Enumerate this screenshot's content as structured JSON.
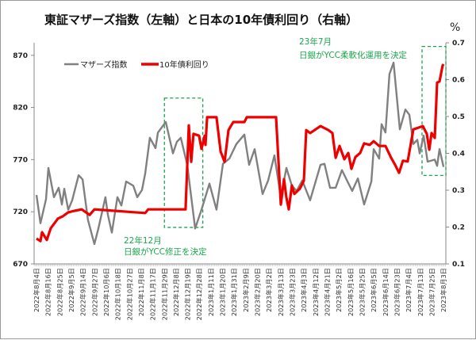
{
  "chart_data": {
    "type": "line",
    "title": "東証マザーズ指数（左軸）と日本の10年債利回り（右軸）",
    "left_axis": {
      "ticks": [
        "670",
        "720",
        "770",
        "820",
        "870"
      ],
      "range": [
        670,
        882
      ]
    },
    "right_axis": {
      "unit": "%",
      "ticks": [
        "0.1",
        "0.2",
        "0.3",
        "0.4",
        "0.5",
        "0.6",
        "0.7"
      ],
      "range": [
        0.1,
        0.7
      ]
    },
    "x_labels": [
      "2022年8月4日",
      "2022年8月16日",
      "2022年8月25日",
      "2022年9月5日",
      "2022年9月14日",
      "2022年9月27日",
      "2022年10月6日",
      "2022年10月18日",
      "2022年10月27日",
      "2022年11月8日",
      "2022年11月17日",
      "2022年11月29日",
      "2022年12月8日",
      "2022年12月19日",
      "2022年12月28日",
      "2023年1月11日",
      "2023年1月20日",
      "2023年1月31日",
      "2023年2月9日",
      "2023年2月20日",
      "2023年3月2日",
      "2023年3月13日",
      "2023年3月23日",
      "2023年4月3日",
      "2023年4月12日",
      "2023年4月21日",
      "2023年5月2日",
      "2023年5月16日",
      "2023年5月25日",
      "2023年6月5日",
      "2023年6月14日",
      "2023年6月23日",
      "2023年7月4日",
      "2023年7月13日",
      "2023年7月25日",
      "2023年8月3日"
    ],
    "legend": [
      "マザーズ指数",
      "10年債利回り"
    ],
    "legend_position": "top-left",
    "series": [
      {
        "name": "マザーズ指数",
        "axis": "left",
        "color": "#808080",
        "points": [
          [
            0,
            736
          ],
          [
            0.34,
            709
          ],
          [
            0.82,
            732
          ],
          [
            1.02,
            762
          ],
          [
            1.5,
            734
          ],
          [
            1.91,
            743
          ],
          [
            2.18,
            727
          ],
          [
            2.39,
            742
          ],
          [
            2.73,
            722
          ],
          [
            3.07,
            731
          ],
          [
            3.62,
            755
          ],
          [
            3.96,
            751
          ],
          [
            4.43,
            712
          ],
          [
            4.98,
            689
          ],
          [
            5.32,
            704
          ],
          [
            5.93,
            734
          ],
          [
            6.14,
            717
          ],
          [
            6.48,
            700
          ],
          [
            6.96,
            734
          ],
          [
            7.3,
            726
          ],
          [
            7.71,
            749
          ],
          [
            8.32,
            745
          ],
          [
            8.66,
            734
          ],
          [
            9.07,
            741
          ],
          [
            9.35,
            757
          ],
          [
            9.75,
            791
          ],
          [
            10.23,
            781
          ],
          [
            10.44,
            796
          ],
          [
            10.91,
            803
          ],
          [
            11.12,
            806
          ],
          [
            11.73,
            776
          ],
          [
            12.07,
            787
          ],
          [
            12.41,
            791
          ],
          [
            12.96,
            765
          ],
          [
            13.64,
            704
          ],
          [
            14.19,
            722
          ],
          [
            14.87,
            747
          ],
          [
            15.48,
            722
          ],
          [
            16.03,
            766
          ],
          [
            16.58,
            771
          ],
          [
            17.19,
            785
          ],
          [
            17.87,
            794
          ],
          [
            18.28,
            765
          ],
          [
            18.76,
            780
          ],
          [
            19.44,
            737
          ],
          [
            19.92,
            750
          ],
          [
            20.46,
            774
          ],
          [
            21.01,
            734
          ],
          [
            21.49,
            762
          ],
          [
            21.96,
            745
          ],
          [
            22.37,
            740
          ],
          [
            22.85,
            750
          ],
          [
            23.53,
            731
          ],
          [
            24.42,
            765
          ],
          [
            24.76,
            766
          ],
          [
            25.24,
            743
          ],
          [
            25.72,
            743
          ],
          [
            26.26,
            760
          ],
          [
            26.74,
            749
          ],
          [
            27.15,
            740
          ],
          [
            27.63,
            752
          ],
          [
            28.17,
            727
          ],
          [
            28.79,
            749
          ],
          [
            28.99,
            780
          ],
          [
            29.47,
            771
          ],
          [
            29.67,
            804
          ],
          [
            30.01,
            796
          ],
          [
            30.35,
            852
          ],
          [
            30.7,
            863
          ],
          [
            31.24,
            799
          ],
          [
            31.72,
            818
          ],
          [
            32.06,
            813
          ],
          [
            32.4,
            785
          ],
          [
            32.74,
            789
          ],
          [
            32.95,
            776
          ],
          [
            33.29,
            793
          ],
          [
            33.63,
            768
          ],
          [
            34.24,
            770
          ],
          [
            34.45,
            764
          ],
          [
            34.65,
            780
          ],
          [
            35,
            763
          ]
        ]
      },
      {
        "name": "10年債利回り",
        "axis": "right",
        "color": "#ee0000",
        "points": [
          [
            0,
            0.169
          ],
          [
            0.34,
            0.162
          ],
          [
            0.48,
            0.186
          ],
          [
            0.89,
            0.165
          ],
          [
            1.23,
            0.197
          ],
          [
            1.84,
            0.223
          ],
          [
            2.25,
            0.229
          ],
          [
            2.73,
            0.24
          ],
          [
            3.27,
            0.244
          ],
          [
            3.89,
            0.248
          ],
          [
            4.57,
            0.233
          ],
          [
            4.98,
            0.248
          ],
          [
            9.35,
            0.238
          ],
          [
            9.6,
            0.248
          ],
          [
            12.82,
            0.248
          ],
          [
            13.1,
            0.476
          ],
          [
            13.3,
            0.377
          ],
          [
            13.5,
            0.453
          ],
          [
            13.98,
            0.448
          ],
          [
            14.19,
            0.412
          ],
          [
            14.46,
            0.448
          ],
          [
            14.53,
            0.423
          ],
          [
            14.67,
            0.498
          ],
          [
            15.48,
            0.498
          ],
          [
            15.83,
            0.405
          ],
          [
            16.17,
            0.377
          ],
          [
            16.51,
            0.463
          ],
          [
            16.92,
            0.485
          ],
          [
            17.87,
            0.485
          ],
          [
            18.08,
            0.498
          ],
          [
            20.6,
            0.498
          ],
          [
            21.01,
            0.261
          ],
          [
            21.28,
            0.33
          ],
          [
            21.49,
            0.28
          ],
          [
            21.69,
            0.248
          ],
          [
            21.96,
            0.313
          ],
          [
            22.17,
            0.29
          ],
          [
            22.65,
            0.304
          ],
          [
            22.99,
            0.326
          ],
          [
            23.19,
            0.463
          ],
          [
            23.53,
            0.455
          ],
          [
            24.42,
            0.474
          ],
          [
            25.1,
            0.463
          ],
          [
            25.44,
            0.455
          ],
          [
            25.72,
            0.388
          ],
          [
            26.06,
            0.42
          ],
          [
            26.47,
            0.384
          ],
          [
            26.81,
            0.401
          ],
          [
            27.08,
            0.358
          ],
          [
            27.42,
            0.39
          ],
          [
            27.83,
            0.401
          ],
          [
            28.17,
            0.427
          ],
          [
            28.65,
            0.423
          ],
          [
            28.99,
            0.433
          ],
          [
            29.47,
            0.42
          ],
          [
            30.01,
            0.42
          ],
          [
            30.49,
            0.388
          ],
          [
            30.83,
            0.369
          ],
          [
            31.17,
            0.347
          ],
          [
            31.51,
            0.38
          ],
          [
            31.92,
            0.378
          ],
          [
            32.4,
            0.465
          ],
          [
            32.88,
            0.47
          ],
          [
            33.22,
            0.474
          ],
          [
            33.56,
            0.453
          ],
          [
            33.77,
            0.41
          ],
          [
            33.97,
            0.455
          ],
          [
            34.24,
            0.442
          ],
          [
            34.45,
            0.592
          ],
          [
            34.65,
            0.595
          ],
          [
            34.92,
            0.638
          ],
          [
            35,
            0.642
          ]
        ]
      }
    ],
    "annotations": [
      {
        "line1": "22年12月",
        "line2": "日銀がYCC修正を決定",
        "box_x_range": [
          11.0,
          14.3
        ],
        "box_left_range": [
          705,
          829
        ]
      },
      {
        "line1": "23年7月",
        "line2": "日銀がYCC柔軟化運用を決定",
        "box_x_range": [
          33.15,
          35.2
        ],
        "box_right_range": [
          0.34,
          0.69
        ]
      }
    ],
    "annotation_color": "#1aa64a"
  }
}
